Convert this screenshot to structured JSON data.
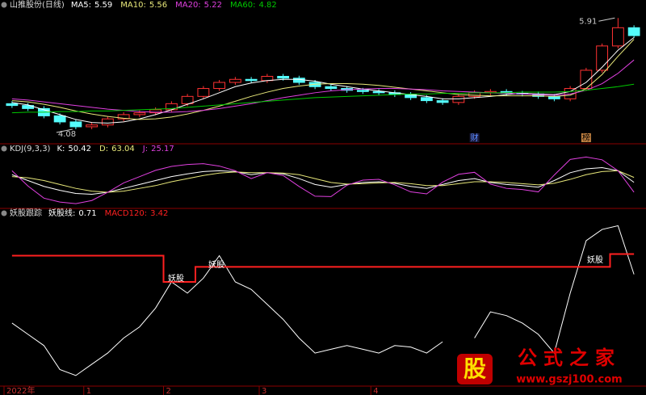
{
  "chart_data": [
    {
      "type": "candlestick",
      "title": "山推股份(日线)",
      "categories": [
        "2022年",
        null,
        null,
        null,
        null,
        "1",
        null,
        null,
        null,
        null,
        "2",
        null,
        null,
        null,
        null,
        null,
        "3",
        null,
        null,
        null,
        null,
        null,
        null,
        "4",
        null,
        null,
        null,
        null,
        null,
        null,
        null,
        null,
        null,
        null,
        null,
        null,
        null,
        null,
        null,
        null
      ],
      "open": [
        4.5,
        4.47,
        4.42,
        4.3,
        4.2,
        4.12,
        4.15,
        4.25,
        4.32,
        4.35,
        4.4,
        4.5,
        4.62,
        4.75,
        4.85,
        4.9,
        4.88,
        4.95,
        4.92,
        4.85,
        4.78,
        4.75,
        4.72,
        4.7,
        4.68,
        4.65,
        4.6,
        4.55,
        4.52,
        4.62,
        4.68,
        4.7,
        4.67,
        4.66,
        4.62,
        4.58,
        4.75,
        5.05,
        5.45,
        5.75
      ],
      "high": [
        4.54,
        4.51,
        4.46,
        4.34,
        4.24,
        4.19,
        4.29,
        4.36,
        4.39,
        4.44,
        4.54,
        4.66,
        4.79,
        4.89,
        4.94,
        4.94,
        4.99,
        4.99,
        4.96,
        4.89,
        4.82,
        4.79,
        4.76,
        4.74,
        4.72,
        4.69,
        4.64,
        4.59,
        4.66,
        4.72,
        4.74,
        4.74,
        4.71,
        4.7,
        4.66,
        4.79,
        5.09,
        5.49,
        5.91,
        5.79
      ],
      "low": [
        4.43,
        4.38,
        4.26,
        4.16,
        4.08,
        4.08,
        4.11,
        4.21,
        4.28,
        4.31,
        4.36,
        4.46,
        4.58,
        4.71,
        4.81,
        4.84,
        4.84,
        4.88,
        4.81,
        4.74,
        4.71,
        4.68,
        4.66,
        4.64,
        4.61,
        4.56,
        4.51,
        4.48,
        4.48,
        4.58,
        4.64,
        4.63,
        4.62,
        4.58,
        4.54,
        4.54,
        4.71,
        5.01,
        5.41,
        5.58
      ],
      "close": [
        4.47,
        4.42,
        4.3,
        4.2,
        4.12,
        4.15,
        4.25,
        4.32,
        4.35,
        4.4,
        4.5,
        4.62,
        4.75,
        4.85,
        4.9,
        4.88,
        4.95,
        4.92,
        4.85,
        4.78,
        4.75,
        4.72,
        4.7,
        4.68,
        4.65,
        4.6,
        4.55,
        4.52,
        4.62,
        4.68,
        4.7,
        4.67,
        4.66,
        4.62,
        4.58,
        4.75,
        5.05,
        5.45,
        5.75,
        5.62
      ],
      "up_color": "#ff3232",
      "down_color": "#54fcfc",
      "series": [
        {
          "name": "MA5:",
          "color": "#ffffff",
          "values": [
            4.52,
            4.48,
            4.4,
            4.32,
            4.24,
            4.19,
            4.18,
            4.2,
            4.25,
            4.32,
            4.4,
            4.49,
            4.58,
            4.68,
            4.78,
            4.84,
            4.88,
            4.9,
            4.9,
            4.87,
            4.82,
            4.78,
            4.74,
            4.71,
            4.68,
            4.65,
            4.62,
            4.58,
            4.58,
            4.6,
            4.62,
            4.65,
            4.67,
            4.66,
            4.65,
            4.7,
            4.85,
            5.1,
            5.38,
            5.59
          ]
        },
        {
          "name": "MA10:",
          "color": "#e8e87a",
          "values": [
            4.55,
            4.53,
            4.49,
            4.44,
            4.38,
            4.33,
            4.29,
            4.26,
            4.24,
            4.25,
            4.28,
            4.33,
            4.39,
            4.46,
            4.54,
            4.62,
            4.69,
            4.75,
            4.79,
            4.82,
            4.83,
            4.83,
            4.82,
            4.8,
            4.77,
            4.74,
            4.71,
            4.68,
            4.65,
            4.64,
            4.63,
            4.63,
            4.63,
            4.63,
            4.62,
            4.64,
            4.75,
            4.98,
            5.28,
            5.56
          ]
        },
        {
          "name": "MA20:",
          "color": "#e040e0",
          "values": [
            4.58,
            4.56,
            4.53,
            4.5,
            4.47,
            4.44,
            4.41,
            4.39,
            4.37,
            4.36,
            4.36,
            4.37,
            4.39,
            4.42,
            4.46,
            4.5,
            4.55,
            4.6,
            4.64,
            4.68,
            4.71,
            4.73,
            4.74,
            4.75,
            4.75,
            4.74,
            4.73,
            4.71,
            4.7,
            4.69,
            4.68,
            4.67,
            4.66,
            4.65,
            4.64,
            4.66,
            4.72,
            4.83,
            5.0,
            5.22
          ]
        },
        {
          "name": "MA60:",
          "color": "#00c800",
          "values": [
            4.35,
            4.36,
            4.36,
            4.37,
            4.37,
            4.38,
            4.38,
            4.39,
            4.4,
            4.41,
            4.42,
            4.44,
            4.46,
            4.48,
            4.5,
            4.52,
            4.54,
            4.56,
            4.58,
            4.6,
            4.61,
            4.62,
            4.63,
            4.64,
            4.65,
            4.66,
            4.66,
            4.67,
            4.67,
            4.68,
            4.68,
            4.68,
            4.69,
            4.69,
            4.69,
            4.7,
            4.72,
            4.75,
            4.78,
            4.82
          ]
        }
      ],
      "ylim": [
        3.88,
        6.02
      ],
      "annotations": [
        "财",
        "榜"
      ]
    },
    {
      "type": "line",
      "title": "KDJ(9,3,3)",
      "series": [
        {
          "name": "K:",
          "color": "#ffffff",
          "values": [
            70,
            55,
            40,
            30,
            22,
            20,
            25,
            35,
            45,
            55,
            65,
            72,
            78,
            80,
            78,
            70,
            75,
            72,
            60,
            45,
            38,
            45,
            50,
            52,
            48,
            40,
            35,
            45,
            55,
            60,
            50,
            45,
            42,
            38,
            55,
            75,
            85,
            88,
            80,
            50.42
          ]
        },
        {
          "name": "D:",
          "color": "#e8e87a",
          "values": [
            65,
            62,
            55,
            45,
            35,
            28,
            25,
            28,
            35,
            42,
            52,
            60,
            68,
            74,
            77,
            75,
            75,
            74,
            70,
            60,
            50,
            46,
            47,
            49,
            50,
            47,
            42,
            42,
            47,
            52,
            52,
            50,
            47,
            44,
            48,
            58,
            70,
            78,
            80,
            63.04
          ]
        },
        {
          "name": "J:",
          "color": "#e040e0",
          "values": [
            80,
            41,
            10,
            0,
            -4,
            4,
            25,
            49,
            65,
            81,
            91,
            96,
            98,
            92,
            80,
            60,
            75,
            68,
            40,
            15,
            14,
            43,
            56,
            58,
            44,
            26,
            21,
            51,
            71,
            76,
            46,
            35,
            32,
            26,
            69,
            109,
            115,
            108,
            80,
            25.17
          ]
        }
      ],
      "ylim": [
        -10,
        120
      ]
    },
    {
      "type": "line",
      "title": "妖股跟踪",
      "series": [
        {
          "name": "妖股线:",
          "color": "#ffffff",
          "values": [
            -5.8,
            -7.3,
            -8.8,
            -12.0,
            -12.8,
            -11.3,
            -9.8,
            -7.8,
            -6.3,
            -3.8,
            -0.3,
            -1.8,
            0.2,
            3.2,
            -0.3,
            -1.3,
            -3.3,
            -5.3,
            -7.8,
            -9.8,
            -9.3,
            -8.8,
            -9.3,
            -9.8,
            -8.8,
            -9.0,
            -9.8,
            -8.3,
            null,
            -7.8,
            -4.3,
            -4.8,
            -5.8,
            -7.3,
            -9.8,
            -1.8,
            5.2,
            6.7,
            7.2,
            0.71
          ]
        },
        {
          "name": "MACD120:",
          "color": "#ff2020",
          "step": true,
          "values": [
            3.2,
            3.2,
            3.2,
            3.2,
            3.2,
            3.2,
            3.2,
            3.2,
            3.2,
            3.2,
            -0.3,
            -0.3,
            1.7,
            1.7,
            1.7,
            1.7,
            1.7,
            1.7,
            1.7,
            1.7,
            1.7,
            1.7,
            1.7,
            1.7,
            1.7,
            1.7,
            1.7,
            1.7,
            1.7,
            1.7,
            1.7,
            1.7,
            1.7,
            1.7,
            1.7,
            1.7,
            1.7,
            1.7,
            3.42,
            3.42
          ]
        }
      ],
      "ylim": [
        -14,
        8
      ],
      "annotations": [
        "妖股",
        "妖股",
        "妖股"
      ]
    }
  ],
  "watermark": {
    "icon": "股",
    "title": "公式之家",
    "url": "www.gszj100.com"
  }
}
